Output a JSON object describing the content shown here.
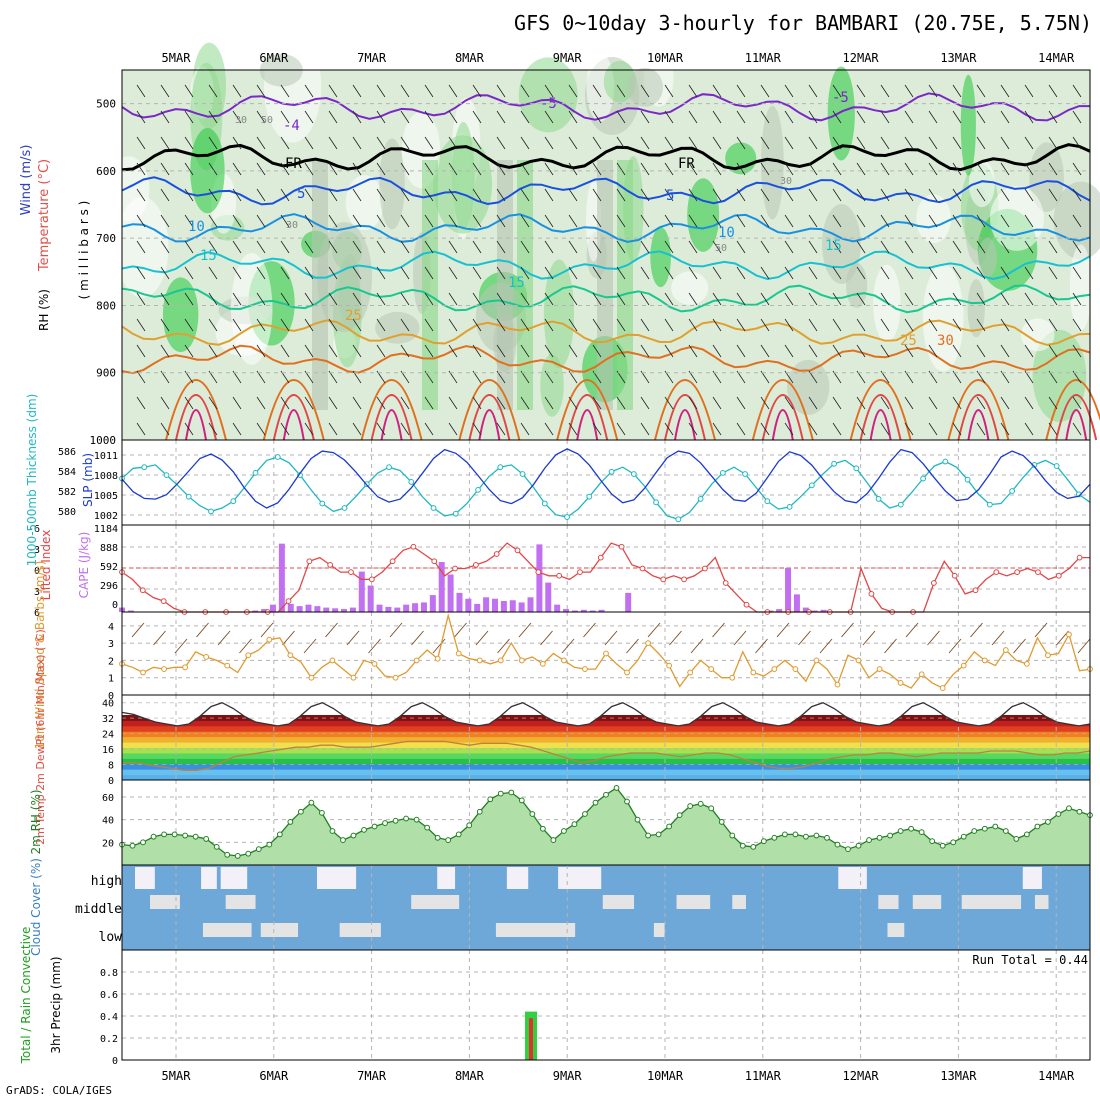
{
  "title": "GFS 0~10day 3-hourly for BAMBARI (20.75E, 5.75N)",
  "footer": "GrADS: COLA/IGES",
  "colors": {
    "grid": "#b4b4b4",
    "rh_green": "#22c83a",
    "rh_light": "#dcecd8",
    "temp_label": "#e0504a",
    "wind_label": "#3b5fd0",
    "cape_bar": "#c070f0",
    "li_line": "#e04848",
    "slp_line": "#1a3ad0",
    "thick_line": "#20b8c0",
    "wind10_line": "#e09a30",
    "cloud_blue": "#6ea8d8",
    "precip_green": "#30d040",
    "precip_red": "#e03030"
  },
  "chart_data": [
    {
      "panel": "upper-air",
      "type": "heatmap",
      "ylabel_parts": [
        "RH (%)",
        "Temperature (°C)",
        "Wind (m/s)"
      ],
      "ylabel_units": "( m i l l i b a r s )",
      "yticks": [
        "500",
        "600",
        "700",
        "800",
        "900",
        "1000"
      ],
      "ylim": [
        1000,
        450
      ],
      "x_dates": [
        "5MAR",
        "6MAR",
        "7MAR",
        "8MAR",
        "9MAR",
        "10MAR",
        "11MAR",
        "12MAR",
        "13MAR",
        "14MAR"
      ],
      "temperature_contours": [
        {
          "value": "-5",
          "level_mb": 505,
          "color": "#7a28c8"
        },
        {
          "value": "FR",
          "level_mb": 580,
          "color": "#000000"
        },
        {
          "value": "5",
          "level_mb": 630,
          "color": "#1a50e0"
        },
        {
          "value": "10",
          "level_mb": 685,
          "color": "#1a90e0"
        },
        {
          "value": "15",
          "level_mb": 740,
          "color": "#18c0d0"
        },
        {
          "value": "20",
          "level_mb": 790,
          "color": "#18c890"
        },
        {
          "value": "25",
          "level_mb": 840,
          "color": "#e0a030"
        },
        {
          "value": "30",
          "level_mb": 880,
          "color": "#e07020"
        }
      ],
      "contour_labels": [
        "-5",
        "-5",
        "-4",
        "FR",
        "FR",
        "5",
        "5",
        "10",
        "10",
        "15",
        "15",
        "15",
        "25",
        "25",
        "30",
        "30",
        "50",
        "50",
        "30",
        "30"
      ]
    },
    {
      "panel": "thickness-slp",
      "type": "line",
      "ylabel_left": "1000-500mb Thickness (dm)",
      "ylabel_right": "SLP (mb)",
      "left_ticks": [
        "586",
        "584",
        "582",
        "580"
      ],
      "right_ticks": [
        "1011",
        "1008",
        "1005",
        "1002"
      ],
      "series": [
        {
          "name": "SLP (mb)",
          "axis": "right",
          "values": [
            1007.2,
            1005.5,
            1004.6,
            1004.5,
            1005.1,
            1006.6,
            1008.3,
            1010.0,
            1010.6,
            1009.8,
            1008.2,
            1006.0,
            1004.2,
            1003.3,
            1004.0,
            1005.8,
            1008.0,
            1010.0,
            1011.0,
            1010.8,
            1009.8,
            1008.2,
            1006.4,
            1004.8,
            1004.1,
            1004.5,
            1006.0,
            1008.0,
            1010.0,
            1011.2,
            1010.7,
            1009.5,
            1007.7,
            1005.8,
            1004.3,
            1003.9,
            1004.7,
            1006.5,
            1008.7,
            1010.5,
            1011.3,
            1010.6,
            1009.1,
            1007.1,
            1005.2,
            1004.0,
            1004.4,
            1006.0,
            1008.1,
            1010.1,
            1011.0,
            1010.7,
            1009.4,
            1007.6,
            1005.8,
            1004.4,
            1004.2,
            1005.3,
            1007.4,
            1009.6,
            1010.9,
            1010.4,
            1009.1,
            1007.2,
            1005.5,
            1004.3,
            1004.0,
            1005.3,
            1007.3,
            1009.5,
            1011.2,
            1010.8,
            1009.3,
            1007.4,
            1005.6,
            1004.3,
            1004.5,
            1005.8,
            1007.9,
            1010.2,
            1011.0,
            1010.4,
            1008.9,
            1007.0,
            1005.4,
            1004.6,
            1004.9,
            1006.5
          ]
        },
        {
          "name": "1000-500mb Thickness (dm)",
          "axis": "left",
          "values": [
            583.6,
            584.5,
            584.6,
            584.8,
            583.9,
            583.0,
            582.0,
            581.2,
            580.7,
            581.0,
            581.6,
            582.8,
            584.1,
            585.2,
            585.5,
            585.0,
            583.9,
            582.6,
            581.4,
            580.7,
            581.0,
            582.0,
            583.1,
            584.1,
            584.6,
            584.3,
            583.3,
            582.0,
            581.0,
            580.3,
            580.5,
            581.4,
            582.6,
            583.8,
            584.6,
            584.8,
            584.0,
            582.8,
            581.4,
            580.4,
            580.2,
            580.9,
            582.0,
            583.2,
            584.2,
            584.6,
            584.0,
            582.9,
            581.5,
            580.3,
            580.0,
            580.6,
            581.8,
            583.1,
            584.1,
            584.6,
            584.0,
            582.8,
            581.6,
            580.9,
            581.1,
            582.0,
            583.0,
            584.0,
            584.9,
            585.2,
            584.5,
            583.2,
            581.8,
            581.0,
            581.3,
            582.4,
            583.6,
            584.7,
            585.1,
            584.6,
            583.5,
            582.2,
            581.3,
            581.4,
            582.5,
            583.7,
            584.8,
            585.2,
            584.7,
            583.5,
            582.2,
            581.5
          ]
        }
      ]
    },
    {
      "panel": "lifted-index-cape",
      "type": "bar",
      "ylabel_left": "Lifted Index",
      "ylabel_right": "CAPE (J/kg)",
      "left_ticks": [
        "-6",
        "-3",
        "0",
        "3",
        "6"
      ],
      "right_ticks": [
        "1184",
        "888",
        "592",
        "296",
        "0"
      ],
      "series": [
        {
          "name": "CAPE (J/kg)",
          "axis": "right",
          "values": [
            60,
            20,
            0,
            0,
            0,
            0,
            0,
            0,
            0,
            0,
            0,
            0,
            0,
            0,
            0,
            20,
            40,
            100,
            930,
            110,
            80,
            100,
            80,
            60,
            50,
            40,
            60,
            550,
            360,
            100,
            70,
            60,
            100,
            120,
            130,
            230,
            680,
            510,
            260,
            180,
            110,
            200,
            180,
            150,
            160,
            130,
            200,
            920,
            400,
            100,
            40,
            20,
            30,
            20,
            30,
            0,
            0,
            260,
            0,
            0,
            0,
            0,
            0,
            0,
            0,
            0,
            0,
            0,
            0,
            0,
            0,
            0,
            0,
            20,
            40,
            600,
            240,
            60,
            20,
            30,
            0,
            0,
            0,
            0,
            0,
            0,
            0,
            0,
            0,
            0,
            0,
            0,
            0,
            0,
            0,
            0,
            0,
            0,
            0,
            0,
            0,
            0,
            0,
            0,
            0,
            0,
            0,
            0,
            0,
            0
          ]
        },
        {
          "name": "Lifted Index",
          "axis": "left",
          "values": [
            0.5,
            1.5,
            3.0,
            4.0,
            4.5,
            5.5,
            6,
            6,
            6,
            6,
            6,
            6,
            6,
            6,
            6,
            6,
            4.5,
            3.0,
            -1.0,
            -1.5,
            -0.5,
            0.5,
            0.5,
            1.5,
            1.5,
            0.5,
            -1.0,
            -2.5,
            -3.0,
            -2.0,
            -1.0,
            1.0,
            0.0,
            0.0,
            -0.5,
            -1.0,
            -2.0,
            -3.5,
            -2.5,
            -1.0,
            0.5,
            1.0,
            1.0,
            1.5,
            0.5,
            0.5,
            -1.5,
            -3.5,
            -3.0,
            -0.5,
            0.0,
            1.0,
            1.5,
            1.0,
            1.5,
            1.0,
            0.0,
            -1.5,
            2.0,
            3.5,
            5.0,
            6,
            6,
            6,
            6,
            6,
            6,
            6,
            6,
            6,
            6,
            0.0,
            3.5,
            5.5,
            6,
            6,
            6,
            6,
            2.0,
            -1.0,
            1.0,
            3.5,
            3.0,
            1.5,
            0.5,
            1.0,
            0.5,
            0.0,
            0.5,
            1.5,
            1.0,
            0.0,
            -1.5,
            -1.5
          ]
        }
      ]
    },
    {
      "panel": "10m-wind",
      "type": "line",
      "ylabel": "10m Wind Speed & Barbs (m/s)",
      "yticks": [
        "4",
        "3",
        "2",
        "1",
        "0"
      ],
      "ylim": [
        0,
        4.8
      ],
      "series": [
        {
          "name": "10m Wind Speed",
          "values": [
            1.8,
            1.6,
            1.3,
            1.6,
            1.5,
            1.6,
            1.6,
            2.5,
            2.2,
            2.0,
            1.7,
            1.3,
            2.3,
            2.6,
            3.2,
            3.3,
            2.3,
            1.9,
            1.0,
            1.6,
            2.0,
            1.5,
            1.0,
            2.0,
            1.8,
            1.1,
            1.0,
            1.3,
            2.0,
            2.6,
            2.1,
            4.6,
            2.4,
            2.1,
            2.0,
            1.8,
            2.0,
            3.0,
            2.0,
            2.2,
            1.8,
            2.4,
            2.0,
            1.6,
            1.5,
            1.5,
            2.4,
            1.8,
            1.3,
            2.0,
            3.0,
            2.4,
            1.7,
            0.5,
            1.3,
            2.0,
            1.5,
            1.0,
            1.0,
            2.5,
            1.3,
            1.1,
            1.5,
            2.0,
            1.5,
            0.8,
            2.0,
            1.5,
            0.6,
            2.3,
            2.0,
            1.0,
            1.5,
            1.2,
            0.7,
            0.4,
            1.2,
            0.7,
            0.4,
            1.2,
            1.7,
            2.5,
            2.0,
            1.7,
            2.6,
            2.0,
            1.8,
            3.3,
            2.3,
            2.4,
            3.5,
            1.4,
            1.5
          ]
        }
      ]
    },
    {
      "panel": "2m-temp",
      "type": "area",
      "ylabel": "2m Temp 2m DewPt (6hr Min/Max) (°C)",
      "yticks": [
        "40",
        "32",
        "24",
        "16",
        "8",
        "0"
      ],
      "ylim": [
        0,
        44
      ],
      "series": [
        {
          "name": "2m Temp",
          "values": [
            35,
            34,
            32,
            30,
            29,
            28,
            29,
            33,
            38,
            40,
            37,
            33,
            30,
            29,
            28,
            29,
            33,
            38,
            40,
            37,
            33,
            30,
            29,
            28,
            29,
            33,
            38,
            40,
            37,
            33,
            30,
            29,
            28,
            29,
            33,
            38,
            40,
            37,
            33,
            30,
            29,
            28,
            29,
            33,
            38,
            40,
            37,
            33,
            30,
            29,
            28,
            29,
            33,
            38,
            40,
            37,
            33,
            30,
            29,
            28,
            29,
            33,
            38,
            40,
            37,
            33,
            30,
            29,
            28,
            29,
            33,
            38,
            40,
            37,
            33,
            30,
            29,
            28,
            29,
            33,
            38,
            40,
            37,
            33,
            30,
            29,
            28,
            29
          ]
        },
        {
          "name": "2m DewPt",
          "values": [
            9,
            9,
            8,
            7,
            6,
            5,
            5,
            6,
            9,
            12,
            13,
            14,
            15,
            16,
            17,
            17,
            18,
            18,
            17,
            17,
            17,
            18,
            19,
            20,
            20,
            20,
            20,
            19,
            18,
            19,
            19,
            19,
            18,
            17,
            15,
            13,
            11,
            9,
            10,
            12,
            13,
            14,
            14,
            14,
            13,
            12,
            13,
            14,
            14,
            13,
            11,
            9,
            7,
            6,
            6,
            7,
            9,
            11,
            12,
            13,
            13,
            14,
            14,
            13,
            12,
            13,
            14,
            14,
            14,
            14,
            15,
            15,
            15,
            14,
            13,
            13,
            14,
            14,
            15
          ]
        }
      ]
    },
    {
      "panel": "2m-rh",
      "type": "area",
      "ylabel": "2m RH (%)",
      "yticks": [
        "60",
        "40",
        "20"
      ],
      "ylim": [
        0,
        75
      ],
      "series": [
        {
          "name": "2m RH",
          "values": [
            18,
            17,
            20,
            25,
            27,
            27,
            26,
            25,
            23,
            16,
            9,
            8,
            10,
            14,
            18,
            27,
            38,
            47,
            55,
            46,
            30,
            22,
            26,
            31,
            34,
            37,
            39,
            41,
            40,
            33,
            24,
            22,
            27,
            35,
            47,
            58,
            63,
            64,
            57,
            45,
            32,
            22,
            30,
            36,
            45,
            55,
            62,
            68,
            56,
            40,
            26,
            27,
            34,
            44,
            52,
            54,
            50,
            38,
            26,
            17,
            16,
            21,
            24,
            27,
            27,
            25,
            26,
            24,
            18,
            14,
            17,
            22,
            24,
            26,
            30,
            32,
            29,
            21,
            17,
            20,
            25,
            30,
            32,
            34,
            30,
            23,
            27,
            34,
            38,
            45,
            50,
            47,
            44
          ]
        }
      ]
    },
    {
      "panel": "cloud-cover",
      "type": "heatmap",
      "ylabel": "Cloud Cover (%)",
      "layers": [
        "high",
        "middle",
        "low"
      ]
    },
    {
      "panel": "precip",
      "type": "bar",
      "ylabel_left": "Total / Rain Convective",
      "ylabel": "3hr Precip (mm)",
      "yticks": [
        "0.8",
        "0.6",
        "0.4",
        "0.2",
        "0"
      ],
      "ylim": [
        0,
        1.0
      ],
      "run_total_text": "Run Total = 0.44",
      "series": [
        {
          "name": "Total / Rain",
          "values": [
            {
              "date": "8MAR 15UTC",
              "value": 0.44
            }
          ]
        },
        {
          "name": "Convective",
          "values": [
            {
              "date": "8MAR 15UTC",
              "value": 0.38
            }
          ]
        }
      ]
    }
  ]
}
